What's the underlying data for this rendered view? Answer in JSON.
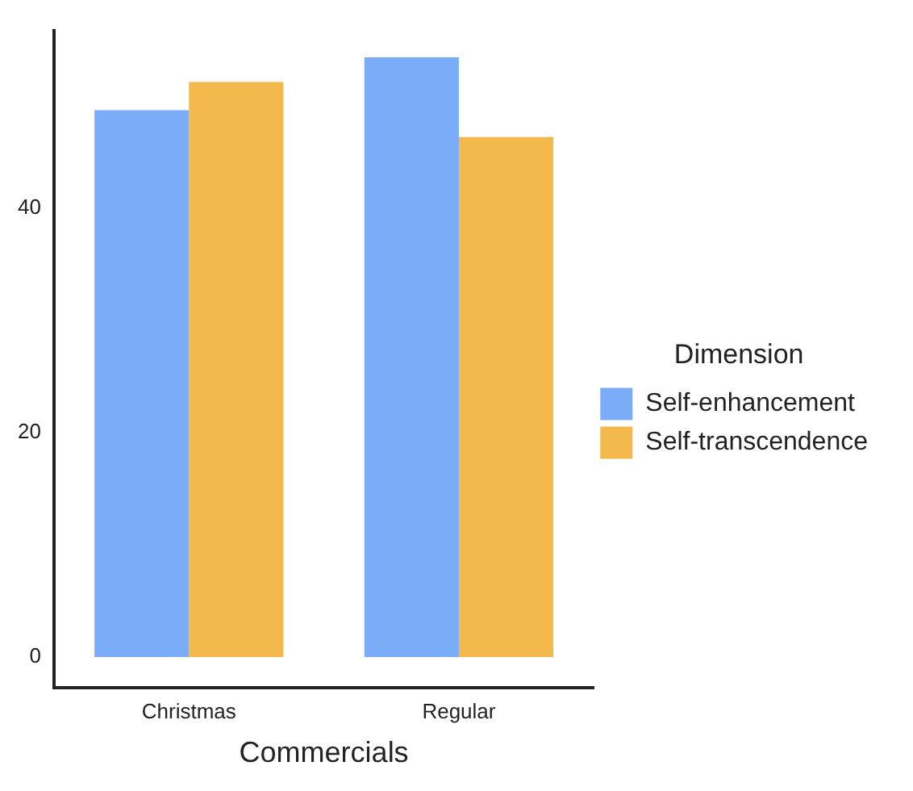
{
  "chart_data": {
    "type": "bar",
    "xlabel": "Commercials",
    "legend_title": "Dimension",
    "categories": [
      "Christmas",
      "Regular"
    ],
    "series": [
      {
        "name": "Self-enhancement",
        "color": "#7aacf8",
        "values": [
          48.7,
          53.4
        ]
      },
      {
        "name": "Self-transcendence",
        "color": "#f4b94d",
        "values": [
          51.2,
          46.3
        ]
      }
    ],
    "ylim": [
      -2.7,
      55.8
    ],
    "yticks": [
      0,
      20,
      40
    ],
    "grid": false,
    "legend": "right"
  }
}
